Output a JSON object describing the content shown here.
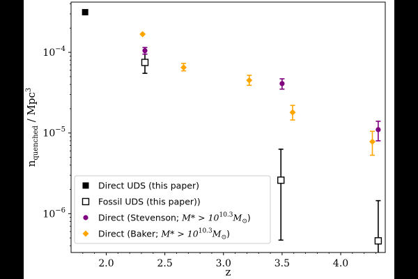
{
  "chart_data": {
    "type": "scatter",
    "xlabel": "z",
    "ylabel": "n_quenched / Mpc^3",
    "ylabel_main": "n",
    "ylabel_sub": "quenched",
    "ylabel_rest": " / Mpc",
    "ylabel_sup": "3",
    "xscale": "linear",
    "yscale": "log",
    "xlim": [
      1.7,
      4.38
    ],
    "ylim": [
      3.3e-07,
      0.00042
    ],
    "xticks": [
      2.0,
      2.5,
      3.0,
      3.5,
      4.0
    ],
    "xtick_labels": [
      "2.0",
      "2.5",
      "3.0",
      "3.5",
      "4.0"
    ],
    "yticks": [
      1e-06,
      1e-05,
      0.0001
    ],
    "ytick_base": "10",
    "ytick_exps": [
      "−6",
      "−5",
      "−4"
    ],
    "grid": false,
    "legend_position": "lower-left",
    "series": [
      {
        "name": "Direct UDS (this paper)",
        "marker": "square-filled",
        "color": "#000000",
        "points": [
          {
            "x": 1.82,
            "y": 0.000315
          }
        ]
      },
      {
        "name": "Fossil UDS (this paper))",
        "marker": "square-open",
        "color": "#000000",
        "points": [
          {
            "x": 2.33,
            "y": 7.5e-05,
            "ylo": 5.5e-05,
            "yhi": 9.5e-05
          },
          {
            "x": 3.49,
            "y": 2.6e-06,
            "ylo": 4.7e-07,
            "yhi": 6.3e-06
          },
          {
            "x": 4.32,
            "y": 4.6e-07,
            "ylo": 2e-07,
            "yhi": 1.45e-06
          }
        ]
      },
      {
        "name": "Direct (Stevenson; M* > 10^10.3 M_sun)",
        "marker": "circle",
        "color": "#800080",
        "points": [
          {
            "x": 2.33,
            "y": 0.000105,
            "ylo": 9.5e-05,
            "yhi": 0.000115
          },
          {
            "x": 3.5,
            "y": 4.1e-05,
            "ylo": 3.5e-05,
            "yhi": 4.7e-05
          },
          {
            "x": 4.32,
            "y": 1.1e-05,
            "ylo": 8e-06,
            "yhi": 1.4e-05
          }
        ]
      },
      {
        "name": "Direct (Baker; M* > 10^10.3 M_sun)",
        "marker": "diamond",
        "color": "#FFA500",
        "points": [
          {
            "x": 2.31,
            "y": 0.000168
          },
          {
            "x": 2.66,
            "y": 6.5e-05,
            "ylo": 5.9e-05,
            "yhi": 7.3e-05
          },
          {
            "x": 3.22,
            "y": 4.5e-05,
            "ylo": 3.9e-05,
            "yhi": 5.2e-05
          },
          {
            "x": 3.59,
            "y": 1.8e-05,
            "ylo": 1.45e-05,
            "yhi": 2.2e-05
          },
          {
            "x": 4.27,
            "y": 7.8e-06,
            "ylo": 5.3e-06,
            "yhi": 1.05e-05
          }
        ]
      }
    ],
    "legend": {
      "entries": [
        {
          "text": "Direct UDS (this paper)"
        },
        {
          "text": "Fossil UDS (this paper))"
        },
        {
          "text_pre": "Direct (Stevenson; ",
          "math": "M* > 10",
          "sup": "10.3",
          "math_end": "M",
          "sub": "⊙",
          "text_post": ")"
        },
        {
          "text_pre": "Direct (Baker; ",
          "math": "M* > 10",
          "sup": "10.3",
          "math_end": "M",
          "sub": "⊙",
          "text_post": ")"
        }
      ]
    }
  }
}
